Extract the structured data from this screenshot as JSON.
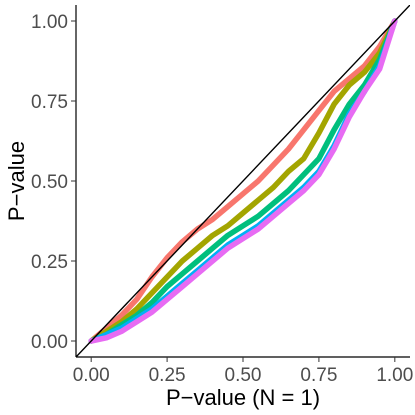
{
  "chart_data": {
    "type": "line",
    "title": "",
    "xlabel": "P−value (N = 1)",
    "ylabel": "P−value",
    "xlim": [
      -0.05,
      1.05
    ],
    "ylim": [
      -0.05,
      1.05
    ],
    "x_ticks": [
      0,
      0.25,
      0.5,
      0.75,
      1
    ],
    "x_tick_labels": [
      "0.00",
      "0.25",
      "0.50",
      "0.75",
      "1.00"
    ],
    "y_ticks": [
      0,
      0.25,
      0.5,
      0.75,
      1
    ],
    "y_tick_labels": [
      "0.00",
      "0.25",
      "0.50",
      "0.75",
      "1.00"
    ],
    "grid": false,
    "legend": "none",
    "reference_line": {
      "x": [
        -0.05,
        1.05
      ],
      "y": [
        -0.05,
        1.05
      ],
      "color": "#000000"
    },
    "series": [
      {
        "color": "#F8766D",
        "x": [
          0,
          0.05,
          0.1,
          0.15,
          0.2,
          0.25,
          0.3,
          0.35,
          0.4,
          0.45,
          0.5,
          0.55,
          0.6,
          0.65,
          0.7,
          0.75,
          0.8,
          0.85,
          0.9,
          0.95,
          1
        ],
        "y": [
          0,
          0.04,
          0.08,
          0.13,
          0.2,
          0.26,
          0.31,
          0.35,
          0.38,
          0.42,
          0.46,
          0.5,
          0.55,
          0.6,
          0.66,
          0.72,
          0.78,
          0.82,
          0.86,
          0.92,
          1
        ]
      },
      {
        "color": "#A3A500",
        "x": [
          0,
          0.05,
          0.1,
          0.15,
          0.2,
          0.25,
          0.3,
          0.35,
          0.4,
          0.45,
          0.5,
          0.55,
          0.6,
          0.65,
          0.7,
          0.75,
          0.8,
          0.85,
          0.9,
          0.95,
          1
        ],
        "y": [
          0,
          0.03,
          0.06,
          0.1,
          0.15,
          0.2,
          0.25,
          0.29,
          0.33,
          0.36,
          0.4,
          0.44,
          0.48,
          0.53,
          0.57,
          0.65,
          0.74,
          0.8,
          0.84,
          0.9,
          1
        ]
      },
      {
        "color": "#00BF7D",
        "x": [
          0,
          0.05,
          0.1,
          0.15,
          0.2,
          0.25,
          0.3,
          0.35,
          0.4,
          0.45,
          0.5,
          0.55,
          0.6,
          0.65,
          0.7,
          0.75,
          0.8,
          0.85,
          0.9,
          0.95,
          1
        ],
        "y": [
          0,
          0.02,
          0.05,
          0.08,
          0.12,
          0.17,
          0.21,
          0.25,
          0.29,
          0.33,
          0.36,
          0.39,
          0.43,
          0.47,
          0.52,
          0.57,
          0.66,
          0.74,
          0.8,
          0.88,
          1
        ]
      },
      {
        "color": "#00B0F6",
        "x": [
          0,
          0.05,
          0.1,
          0.15,
          0.2,
          0.25,
          0.3,
          0.35,
          0.4,
          0.45,
          0.5,
          0.55,
          0.6,
          0.65,
          0.7,
          0.75,
          0.8,
          0.85,
          0.9,
          0.95,
          1
        ],
        "y": [
          0,
          0.02,
          0.04,
          0.07,
          0.1,
          0.14,
          0.18,
          0.22,
          0.26,
          0.3,
          0.33,
          0.36,
          0.4,
          0.44,
          0.48,
          0.53,
          0.61,
          0.71,
          0.78,
          0.86,
          1
        ]
      },
      {
        "color": "#E76BF3",
        "x": [
          0,
          0.05,
          0.1,
          0.15,
          0.2,
          0.25,
          0.3,
          0.35,
          0.4,
          0.45,
          0.5,
          0.55,
          0.6,
          0.65,
          0.7,
          0.75,
          0.8,
          0.85,
          0.9,
          0.95,
          1
        ],
        "y": [
          0,
          0.01,
          0.03,
          0.06,
          0.09,
          0.13,
          0.17,
          0.21,
          0.25,
          0.29,
          0.32,
          0.35,
          0.39,
          0.43,
          0.47,
          0.52,
          0.6,
          0.7,
          0.78,
          0.85,
          1
        ]
      }
    ]
  }
}
